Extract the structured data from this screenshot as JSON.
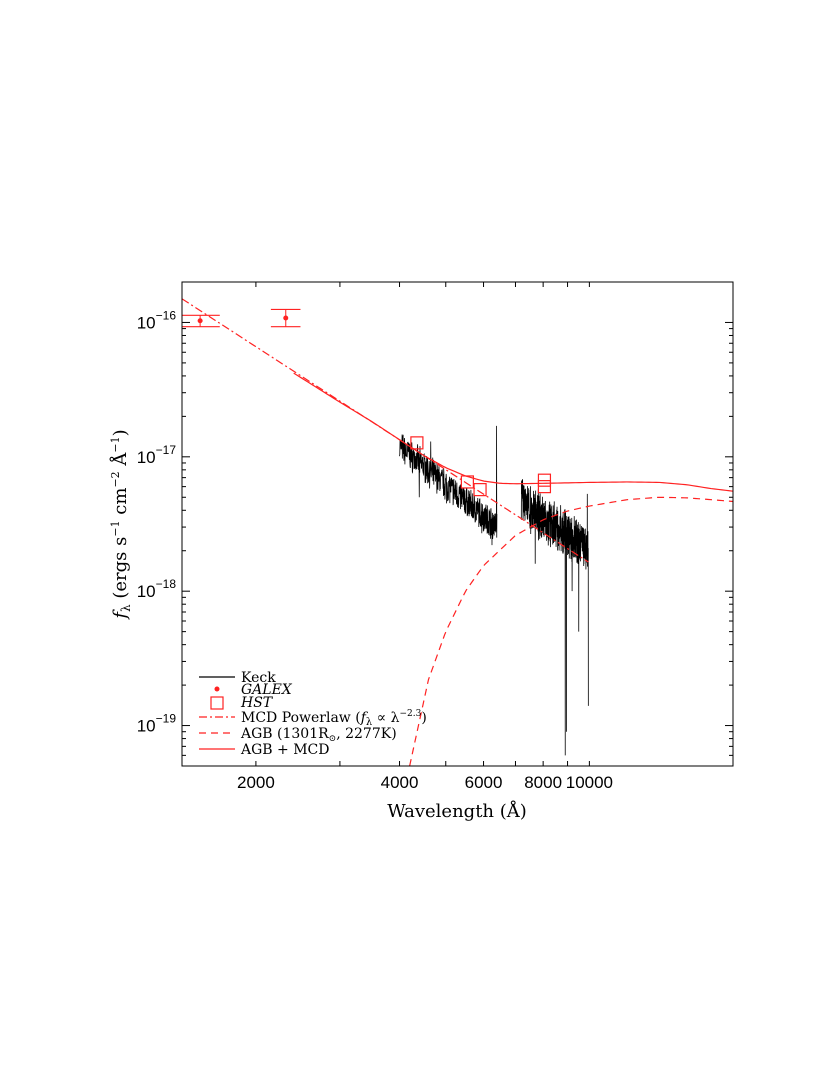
{
  "chart_data": {
    "type": "line",
    "xlabel": "Wavelength (Å)",
    "ylabel": "f_λ (ergs s⁻¹ cm⁻² Å⁻¹)",
    "xscale": "log",
    "yscale": "log",
    "xlim": [
      1400,
      20000
    ],
    "ylim": [
      5e-20,
      2e-16
    ],
    "x_ticks": [
      2000,
      4000,
      6000,
      8000,
      10000
    ],
    "x_tick_labels": [
      "2000",
      "4000",
      "6000",
      "8000",
      "10000"
    ],
    "y_ticks": [
      1e-19,
      1e-18,
      1e-17,
      1e-16
    ],
    "y_tick_labels": [
      {
        "base": "10",
        "exp": "−19"
      },
      {
        "base": "10",
        "exp": "−18"
      },
      {
        "base": "10",
        "exp": "−17"
      },
      {
        "base": "10",
        "exp": "−16"
      }
    ],
    "grid": false,
    "legend_position": "bottom-left",
    "colors": {
      "keck": "#000000",
      "model": "#ff2222"
    },
    "series": [
      {
        "name": "Keck",
        "style": "solid-black",
        "segments": [
          {
            "x_range": [
              4000,
              6400
            ],
            "y_start": 1.2e-17,
            "y_end": 3e-18,
            "noise": 0.1,
            "seed": 7,
            "spikes": [
              [
                4400,
                5e-18
              ],
              [
                4470,
                1e-17
              ],
              [
                4650,
                1.3e-17
              ],
              [
                5020,
                4.5e-18
              ],
              [
                6390,
                1.7e-17
              ]
            ],
            "dips": [
              [
                5950,
                2.7e-18
              ],
              [
                6250,
                2.2e-18
              ]
            ]
          },
          {
            "x_range": [
              7200,
              9950
            ],
            "y_start": 4.6e-18,
            "y_end": 2e-18,
            "noise": 0.15,
            "seed": 13,
            "spikes": [
              [
                9900,
                5.3e-18
              ],
              [
                9950,
                3e-18
              ]
            ],
            "dips": [
              [
                7700,
                1.6e-18
              ],
              [
                8900,
                6e-20
              ],
              [
                8950,
                9e-20
              ],
              [
                9200,
                1e-18
              ],
              [
                9960,
                1.4e-19
              ],
              [
                9500,
                5e-19
              ]
            ]
          }
        ]
      },
      {
        "name": "GALEX",
        "style": "point-errorbar",
        "points": [
          {
            "x": 1528,
            "y": 1.03e-16,
            "ylo": 9.3e-17,
            "yhi": 1.13e-16,
            "xlo": 1380,
            "xhi": 1680
          },
          {
            "x": 2310,
            "y": 1.08e-16,
            "ylo": 9.3e-17,
            "yhi": 1.25e-16,
            "xlo": 2150,
            "xhi": 2480
          }
        ]
      },
      {
        "name": "HST",
        "style": "open-square",
        "points": [
          {
            "x": 4350,
            "y": 1.27e-17
          },
          {
            "x": 5550,
            "y": 6.5e-18
          },
          {
            "x": 5900,
            "y": 5.7e-18
          },
          {
            "x": 8050,
            "y": 6e-18
          },
          {
            "x": 8050,
            "y": 6.7e-18
          }
        ]
      },
      {
        "name": "MCD Powerlaw",
        "style": "dashdot-red",
        "powerlaw": {
          "x0": 4000,
          "y0": 1.34e-17,
          "index": -2.3
        },
        "x_range": [
          1400,
          9950
        ]
      },
      {
        "name": "AGB",
        "style": "dashed-red",
        "x_range": [
          4200,
          20000
        ],
        "points": [
          [
            4200,
            5e-20
          ],
          [
            4600,
            2.2e-19
          ],
          [
            5000,
            5e-19
          ],
          [
            5500,
            1e-18
          ],
          [
            6000,
            1.55e-18
          ],
          [
            7000,
            2.6e-18
          ],
          [
            8000,
            3.4e-18
          ],
          [
            9000,
            3.95e-18
          ],
          [
            10000,
            4.3e-18
          ],
          [
            12000,
            4.8e-18
          ],
          [
            14000,
            5e-18
          ],
          [
            16000,
            4.95e-18
          ],
          [
            18000,
            4.8e-18
          ],
          [
            20000,
            4.65e-18
          ]
        ]
      },
      {
        "name": "AGB + MCD",
        "style": "solid-red",
        "points": [
          [
            2400,
            4.2e-17
          ],
          [
            3000,
            2.55e-17
          ],
          [
            3500,
            1.83e-17
          ],
          [
            4000,
            1.34e-17
          ],
          [
            4500,
            1.02e-17
          ],
          [
            5000,
            8.3e-18
          ],
          [
            5500,
            7.2e-18
          ],
          [
            6000,
            6.6e-18
          ],
          [
            6500,
            6.35e-18
          ],
          [
            7000,
            6.3e-18
          ],
          [
            8000,
            6.35e-18
          ],
          [
            9000,
            6.4e-18
          ],
          [
            10000,
            6.45e-18
          ],
          [
            12000,
            6.5e-18
          ],
          [
            14000,
            6.45e-18
          ],
          [
            16000,
            6.2e-18
          ],
          [
            18000,
            5.8e-18
          ],
          [
            20000,
            5.55e-18
          ]
        ]
      }
    ]
  },
  "legend": [
    {
      "key": "keck",
      "text": "Keck"
    },
    {
      "key": "galex",
      "text": "GALEX"
    },
    {
      "key": "hst",
      "text": "HST"
    },
    {
      "key": "mcd",
      "text_pre": "MCD Powerlaw (",
      "text_f": "f",
      "text_sub": "λ",
      "text_mid": " ∝ λ",
      "text_sup": "−2.3",
      "text_post": ")"
    },
    {
      "key": "agb",
      "text_pre": "AGB (1301R",
      "text_sub": "⊙",
      "text_post": ", 2277K)"
    },
    {
      "key": "agbmcd",
      "text": "AGB + MCD"
    }
  ]
}
